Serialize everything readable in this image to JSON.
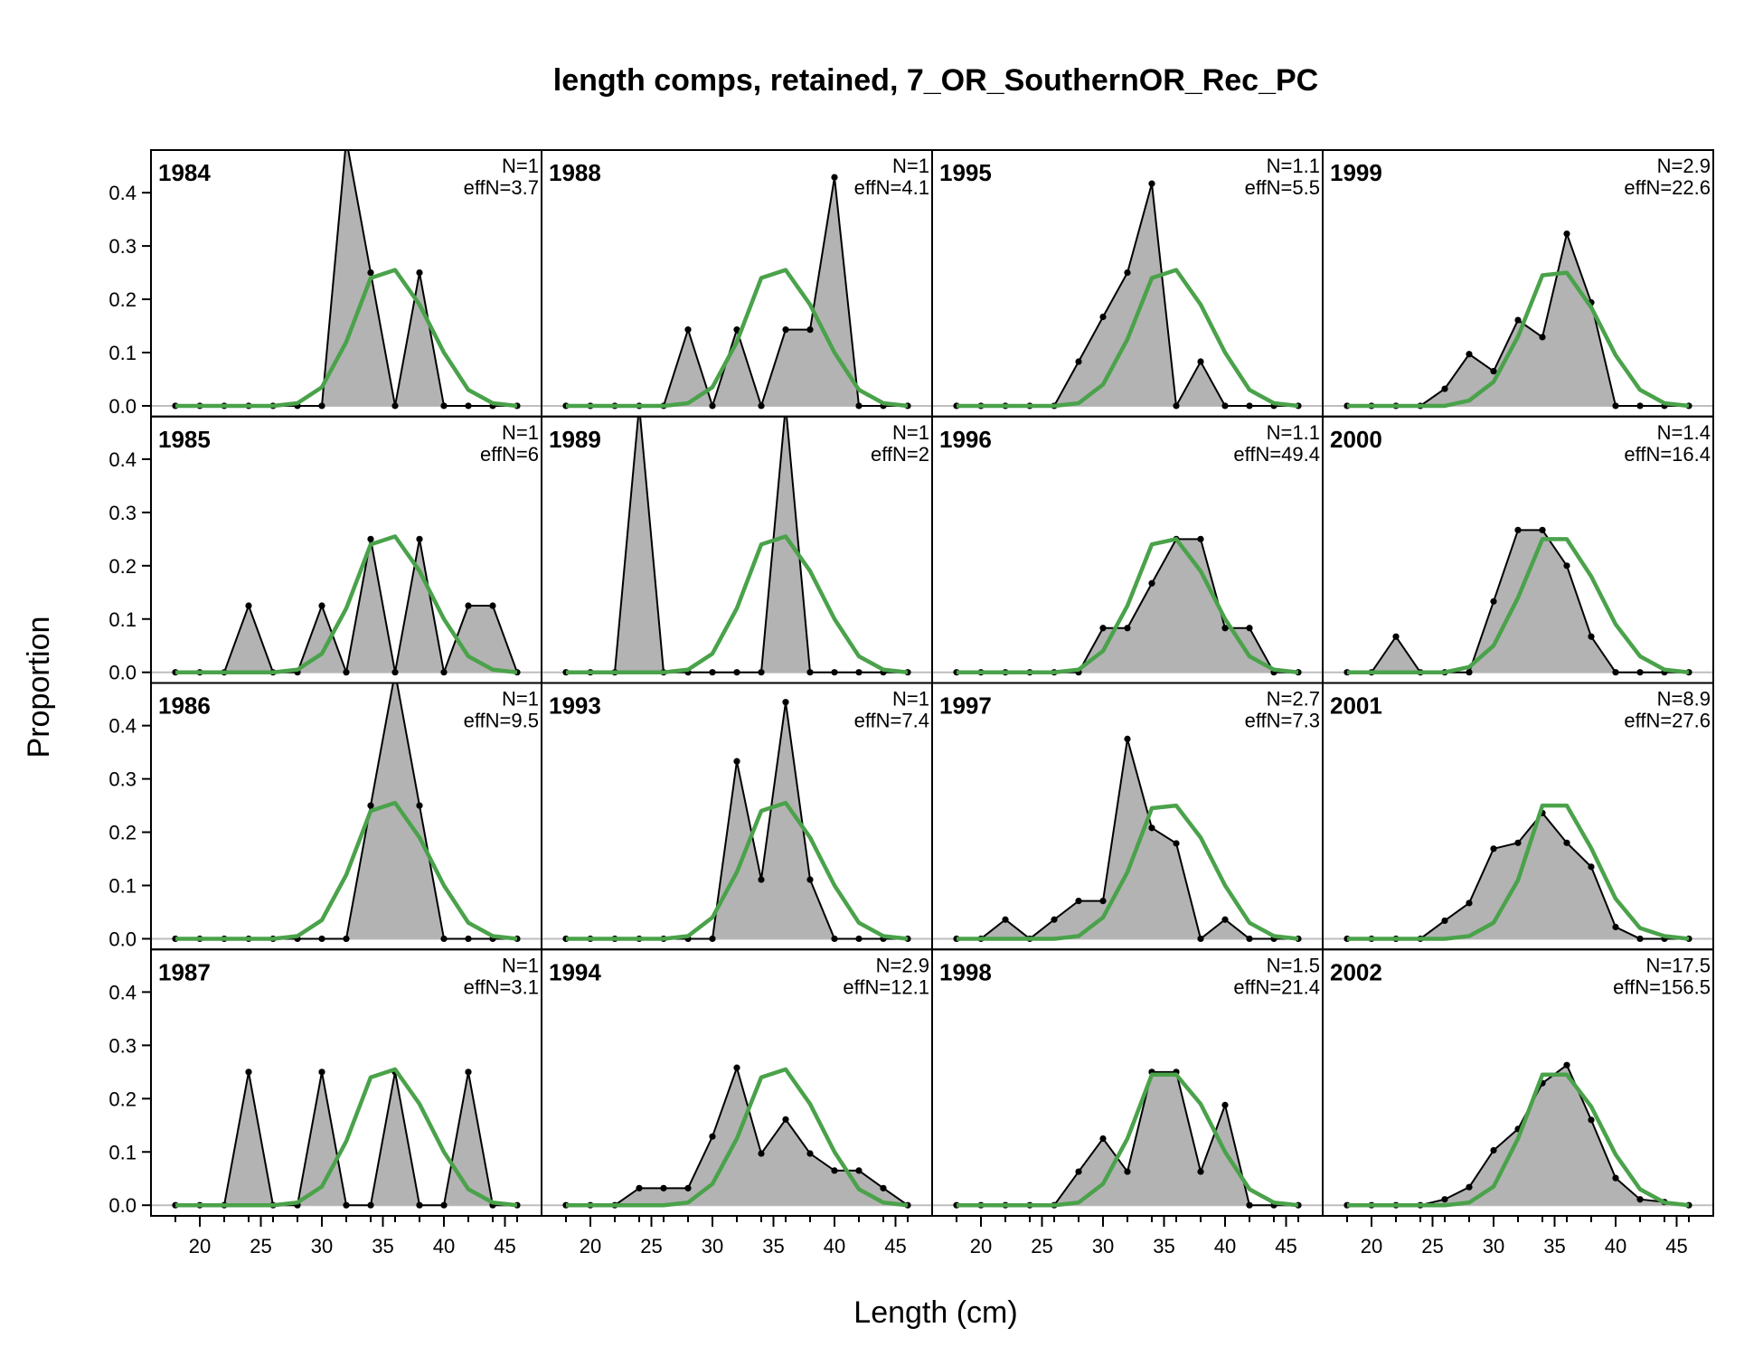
{
  "chart_data": {
    "type": "area",
    "title": "length comps, retained, 7_OR_SouthernOR_Rec_PC",
    "xlabel": "Length (cm)",
    "ylabel": "Proportion",
    "xlim": [
      16,
      48
    ],
    "ylim": [
      -0.02,
      0.48
    ],
    "x_ticks": [
      20,
      25,
      30,
      35,
      40,
      45
    ],
    "y_ticks": [
      0.0,
      0.1,
      0.2,
      0.3,
      0.4
    ],
    "x_tick_labels": [
      "20",
      "25",
      "30",
      "35",
      "40",
      "45"
    ],
    "y_tick_labels": [
      "0.0",
      "0.1",
      "0.2",
      "0.3",
      "0.4"
    ],
    "grid": false,
    "layout": {
      "rows": 4,
      "cols": 4,
      "order": "column-major"
    },
    "series_styles": {
      "observed": {
        "fill": "#b3b3b3",
        "line": "#000000"
      },
      "expected": {
        "line": "#4aa24a"
      }
    },
    "x": [
      18,
      20,
      22,
      24,
      26,
      28,
      30,
      32,
      34,
      36,
      38,
      40,
      42,
      44,
      46
    ],
    "panels": [
      {
        "year": "1984",
        "n_label": "N=1",
        "effn_label": "effN=3.7",
        "observed": [
          0,
          0,
          0,
          0,
          0,
          0,
          0,
          0.5,
          0.25,
          0,
          0.25,
          0,
          0,
          0,
          0
        ],
        "expected": [
          0,
          0,
          0,
          0,
          0,
          0.005,
          0.035,
          0.12,
          0.24,
          0.255,
          0.19,
          0.1,
          0.03,
          0.005,
          0
        ]
      },
      {
        "year": "1985",
        "n_label": "N=1",
        "effn_label": "effN=6",
        "observed": [
          0,
          0,
          0,
          0.125,
          0,
          0,
          0.125,
          0,
          0.25,
          0,
          0.25,
          0,
          0.125,
          0.125,
          0
        ],
        "expected": [
          0,
          0,
          0,
          0,
          0,
          0.005,
          0.035,
          0.12,
          0.24,
          0.255,
          0.19,
          0.1,
          0.03,
          0.005,
          0
        ]
      },
      {
        "year": "1986",
        "n_label": "N=1",
        "effn_label": "effN=9.5",
        "observed": [
          0,
          0,
          0,
          0,
          0,
          0,
          0,
          0,
          0.25,
          0.5,
          0.25,
          0,
          0,
          0,
          0
        ],
        "expected": [
          0,
          0,
          0,
          0,
          0,
          0.005,
          0.035,
          0.12,
          0.24,
          0.255,
          0.19,
          0.1,
          0.03,
          0.005,
          0
        ]
      },
      {
        "year": "1987",
        "n_label": "N=1",
        "effn_label": "effN=3.1",
        "observed": [
          0,
          0,
          0,
          0.25,
          0,
          0,
          0.25,
          0,
          0,
          0.25,
          0,
          0,
          0.25,
          0,
          0
        ],
        "expected": [
          0,
          0,
          0,
          0,
          0,
          0.005,
          0.035,
          0.12,
          0.24,
          0.255,
          0.19,
          0.1,
          0.03,
          0.005,
          0
        ]
      },
      {
        "year": "1988",
        "n_label": "N=1",
        "effn_label": "effN=4.1",
        "observed": [
          0,
          0,
          0,
          0,
          0,
          0.143,
          0,
          0.143,
          0,
          0.143,
          0.143,
          0.429,
          0,
          0,
          0
        ],
        "expected": [
          0,
          0,
          0,
          0,
          0,
          0.005,
          0.035,
          0.12,
          0.24,
          0.255,
          0.19,
          0.1,
          0.03,
          0.005,
          0
        ]
      },
      {
        "year": "1989",
        "n_label": "N=1",
        "effn_label": "effN=2",
        "observed": [
          0,
          0,
          0,
          0.5,
          0,
          0,
          0,
          0,
          0,
          0.5,
          0,
          0,
          0,
          0,
          0
        ],
        "expected": [
          0,
          0,
          0,
          0,
          0,
          0.005,
          0.035,
          0.12,
          0.24,
          0.255,
          0.19,
          0.1,
          0.03,
          0.005,
          0
        ]
      },
      {
        "year": "1993",
        "n_label": "N=1",
        "effn_label": "effN=7.4",
        "observed": [
          0,
          0,
          0,
          0,
          0,
          0,
          0,
          0.333,
          0.111,
          0.444,
          0.111,
          0,
          0,
          0,
          0
        ],
        "expected": [
          0,
          0,
          0,
          0,
          0,
          0.005,
          0.04,
          0.125,
          0.24,
          0.255,
          0.19,
          0.1,
          0.03,
          0.005,
          0
        ]
      },
      {
        "year": "1994",
        "n_label": "N=2.9",
        "effn_label": "effN=12.1",
        "observed": [
          0,
          0,
          0,
          0.032,
          0.032,
          0.032,
          0.129,
          0.258,
          0.097,
          0.161,
          0.097,
          0.065,
          0.065,
          0.032,
          0
        ],
        "expected": [
          0,
          0,
          0,
          0,
          0,
          0.005,
          0.04,
          0.125,
          0.24,
          0.255,
          0.19,
          0.1,
          0.03,
          0.005,
          0
        ]
      },
      {
        "year": "1995",
        "n_label": "N=1.1",
        "effn_label": "effN=5.5",
        "observed": [
          0,
          0,
          0,
          0,
          0,
          0.083,
          0.167,
          0.25,
          0.417,
          0,
          0.083,
          0,
          0,
          0,
          0
        ],
        "expected": [
          0,
          0,
          0,
          0,
          0,
          0.005,
          0.04,
          0.125,
          0.24,
          0.255,
          0.19,
          0.1,
          0.03,
          0.005,
          0
        ]
      },
      {
        "year": "1996",
        "n_label": "N=1.1",
        "effn_label": "effN=49.4",
        "observed": [
          0,
          0,
          0,
          0,
          0,
          0,
          0.083,
          0.083,
          0.167,
          0.25,
          0.25,
          0.083,
          0.083,
          0,
          0
        ],
        "expected": [
          0,
          0,
          0,
          0,
          0,
          0.005,
          0.04,
          0.125,
          0.24,
          0.25,
          0.19,
          0.1,
          0.03,
          0.005,
          0
        ]
      },
      {
        "year": "1997",
        "n_label": "N=2.7",
        "effn_label": "effN=7.3",
        "observed": [
          0,
          0,
          0.036,
          0,
          0.036,
          0.071,
          0.071,
          0.375,
          0.208,
          0.179,
          0,
          0.036,
          0,
          0,
          0
        ],
        "expected": [
          0,
          0,
          0,
          0,
          0,
          0.005,
          0.04,
          0.125,
          0.245,
          0.25,
          0.19,
          0.1,
          0.03,
          0.005,
          0
        ]
      },
      {
        "year": "1998",
        "n_label": "N=1.5",
        "effn_label": "effN=21.4",
        "observed": [
          0,
          0,
          0,
          0,
          0,
          0.063,
          0.125,
          0.063,
          0.25,
          0.25,
          0.063,
          0.188,
          0,
          0,
          0
        ],
        "expected": [
          0,
          0,
          0,
          0,
          0,
          0.005,
          0.04,
          0.125,
          0.245,
          0.245,
          0.19,
          0.1,
          0.03,
          0.005,
          0
        ]
      },
      {
        "year": "1999",
        "n_label": "N=2.9",
        "effn_label": "effN=22.6",
        "observed": [
          0,
          0,
          0,
          0,
          0.032,
          0.097,
          0.065,
          0.161,
          0.129,
          0.323,
          0.194,
          0,
          0,
          0,
          0
        ],
        "expected": [
          0,
          0,
          0,
          0,
          0,
          0.01,
          0.045,
          0.13,
          0.245,
          0.25,
          0.185,
          0.095,
          0.03,
          0.005,
          0
        ]
      },
      {
        "year": "2000",
        "n_label": "N=1.4",
        "effn_label": "effN=16.4",
        "observed": [
          0,
          0,
          0.067,
          0,
          0,
          0,
          0.133,
          0.267,
          0.267,
          0.2,
          0.067,
          0,
          0,
          0,
          0
        ],
        "expected": [
          0,
          0,
          0,
          0,
          0,
          0.01,
          0.05,
          0.14,
          0.25,
          0.25,
          0.18,
          0.09,
          0.03,
          0.005,
          0
        ]
      },
      {
        "year": "2001",
        "n_label": "N=8.9",
        "effn_label": "effN=27.6",
        "observed": [
          0,
          0,
          0,
          0,
          0.034,
          0.067,
          0.169,
          0.18,
          0.236,
          0.18,
          0.135,
          0.022,
          0,
          0,
          0
        ],
        "expected": [
          0,
          0,
          0,
          0,
          0,
          0.005,
          0.03,
          0.11,
          0.25,
          0.25,
          0.17,
          0.075,
          0.02,
          0.005,
          0
        ]
      },
      {
        "year": "2002",
        "n_label": "N=17.5",
        "effn_label": "effN=156.5",
        "observed": [
          0,
          0,
          0,
          0,
          0.011,
          0.034,
          0.103,
          0.143,
          0.229,
          0.263,
          0.16,
          0.051,
          0.011,
          0.006,
          0
        ],
        "expected": [
          0,
          0,
          0,
          0,
          0,
          0.005,
          0.035,
          0.125,
          0.245,
          0.245,
          0.185,
          0.095,
          0.03,
          0.005,
          0
        ]
      }
    ]
  }
}
